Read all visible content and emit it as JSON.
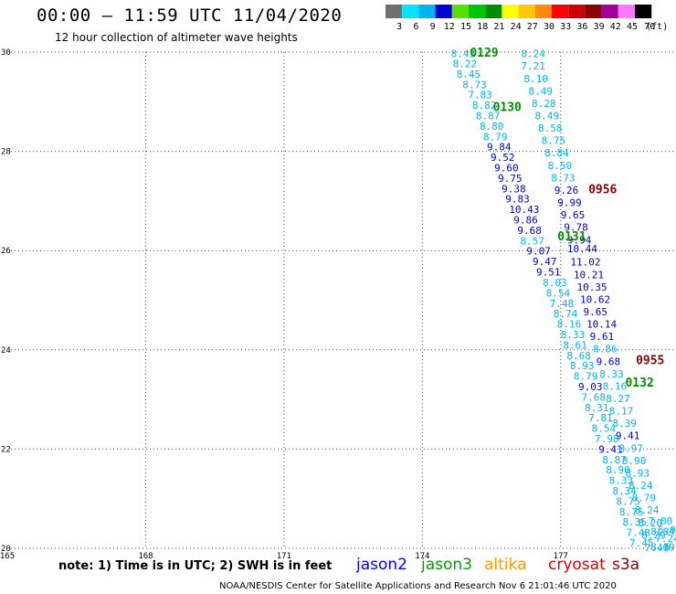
{
  "header": {
    "title": "00:00 – 11:59 UTC 11/04/2020",
    "subtitle": "12 hour collection of altimeter wave heights"
  },
  "colorbar": {
    "colors": [
      "#707070",
      "#00e5ff",
      "#00b4f0",
      "#0000d2",
      "#58e000",
      "#00c800",
      "#008e00",
      "#ffff00",
      "#ffc800",
      "#ff8c00",
      "#ff0000",
      "#cc0000",
      "#8b0000",
      "#a000a0",
      "#ff78ff",
      "#000000"
    ],
    "labels": [
      "3",
      "6",
      "9",
      "12",
      "15",
      "18",
      "21",
      "24",
      "27",
      "30",
      "33",
      "36",
      "39",
      "42",
      "45",
      "70",
      "(ft)"
    ]
  },
  "footer": {
    "note": "note: 1) Time is in UTC; 2) SWH is in feet",
    "credit": "NOAA/NESDIS Center for Satellite Applications and Research    Nov  6 21:01:46 UTC 2020",
    "satellites": [
      {
        "name": "jason2",
        "color": "#0000ff"
      },
      {
        "name": "jason3",
        "color": "#00a000"
      },
      {
        "name": "altika",
        "color": "#ff9a00"
      },
      {
        "name": "cryosat",
        "color": "#dd0000"
      },
      {
        "name": "s3a",
        "color": "#8b0000"
      }
    ]
  },
  "chart_data": {
    "type": "scatter",
    "xlim": [
      165,
      179.5
    ],
    "ylim": [
      20,
      30
    ],
    "x_ticks": [
      "165",
      "168",
      "171",
      "174",
      "177"
    ],
    "x_tick_values": [
      165,
      168,
      171,
      174,
      177
    ],
    "y_ticks": [
      "20",
      "22",
      "24",
      "26",
      "28",
      "30"
    ],
    "y_tick_values": [
      20,
      22,
      24,
      26,
      28,
      30
    ],
    "grid": "dotted",
    "time_labels": [
      {
        "text": "0129",
        "lon": 175.03,
        "lat": 30.0,
        "color": "#008e00"
      },
      {
        "text": "0130",
        "lon": 175.53,
        "lat": 28.9,
        "color": "#008e00"
      },
      {
        "text": "0131",
        "lon": 176.93,
        "lat": 26.3,
        "color": "#008e00"
      },
      {
        "text": "0132",
        "lon": 178.4,
        "lat": 23.35,
        "color": "#008e00"
      },
      {
        "text": "0956",
        "lon": 177.6,
        "lat": 27.25,
        "color": "#8b0000"
      },
      {
        "text": "0955",
        "lon": 178.63,
        "lat": 23.8,
        "color": "#8b0000"
      }
    ],
    "series": [
      {
        "name": "jason3",
        "points": [
          {
            "lon": 174.62,
            "lat": 29.97,
            "v": "8.43",
            "c": "#00b4f0"
          },
          {
            "lon": 174.66,
            "lat": 29.77,
            "v": "8.22",
            "c": "#00b4f0"
          },
          {
            "lon": 174.74,
            "lat": 29.56,
            "v": "8.45",
            "c": "#00b4f0"
          },
          {
            "lon": 174.87,
            "lat": 29.35,
            "v": "8.73",
            "c": "#00b4f0"
          },
          {
            "lon": 174.99,
            "lat": 29.14,
            "v": "7.83",
            "c": "#00b4f0"
          },
          {
            "lon": 175.08,
            "lat": 28.93,
            "v": "8.82",
            "c": "#00b4f0"
          },
          {
            "lon": 175.16,
            "lat": 28.72,
            "v": "8.87",
            "c": "#00b4f0"
          },
          {
            "lon": 175.24,
            "lat": 28.51,
            "v": "8.80",
            "c": "#00b4f0"
          },
          {
            "lon": 175.32,
            "lat": 28.3,
            "v": "8.79",
            "c": "#00b4f0"
          },
          {
            "lon": 175.4,
            "lat": 28.09,
            "v": "9.84",
            "c": "#0000d2"
          },
          {
            "lon": 175.48,
            "lat": 27.88,
            "v": "9.52",
            "c": "#0000d2"
          },
          {
            "lon": 175.56,
            "lat": 27.67,
            "v": "9.60",
            "c": "#0000d2"
          },
          {
            "lon": 175.64,
            "lat": 27.46,
            "v": "9.75",
            "c": "#0000d2"
          },
          {
            "lon": 175.72,
            "lat": 27.25,
            "v": "9.38",
            "c": "#0000d2"
          },
          {
            "lon": 175.8,
            "lat": 27.04,
            "v": "9.83",
            "c": "#0000d2"
          },
          {
            "lon": 175.88,
            "lat": 26.83,
            "v": "10.43",
            "c": "#0000d2"
          },
          {
            "lon": 175.98,
            "lat": 26.62,
            "v": "9.86",
            "c": "#0000d2"
          },
          {
            "lon": 176.06,
            "lat": 26.41,
            "v": "9.68",
            "c": "#0000d2"
          },
          {
            "lon": 176.12,
            "lat": 26.2,
            "v": "8.57",
            "c": "#00b4f0"
          },
          {
            "lon": 176.26,
            "lat": 25.99,
            "v": "9.07",
            "c": "#0000d2"
          },
          {
            "lon": 176.39,
            "lat": 25.78,
            "v": "9.47",
            "c": "#0000d2"
          },
          {
            "lon": 176.47,
            "lat": 25.57,
            "v": "9.51",
            "c": "#0000d2"
          },
          {
            "lon": 176.61,
            "lat": 25.36,
            "v": "8.03",
            "c": "#00b4f0"
          },
          {
            "lon": 176.68,
            "lat": 25.15,
            "v": "8.54",
            "c": "#00b4f0"
          },
          {
            "lon": 176.76,
            "lat": 24.94,
            "v": "7.48",
            "c": "#00b4f0"
          },
          {
            "lon": 176.84,
            "lat": 24.73,
            "v": "8.74",
            "c": "#00b4f0"
          },
          {
            "lon": 176.92,
            "lat": 24.52,
            "v": "8.16",
            "c": "#00b4f0"
          },
          {
            "lon": 177.0,
            "lat": 24.31,
            "v": "8.33",
            "c": "#00b4f0"
          },
          {
            "lon": 177.05,
            "lat": 24.1,
            "v": "8.61",
            "c": "#00b4f0"
          },
          {
            "lon": 177.13,
            "lat": 23.89,
            "v": "8.68",
            "c": "#00b4f0"
          },
          {
            "lon": 177.2,
            "lat": 23.68,
            "v": "8.93",
            "c": "#00b4f0"
          },
          {
            "lon": 177.28,
            "lat": 23.47,
            "v": "8.79",
            "c": "#00b4f0"
          },
          {
            "lon": 177.38,
            "lat": 23.26,
            "v": "9.03",
            "c": "#0000d2"
          },
          {
            "lon": 177.45,
            "lat": 23.05,
            "v": "7.68",
            "c": "#00b4f0"
          },
          {
            "lon": 177.52,
            "lat": 22.84,
            "v": "8.31",
            "c": "#00b4f0"
          },
          {
            "lon": 177.6,
            "lat": 22.63,
            "v": "7.81",
            "c": "#00b4f0"
          },
          {
            "lon": 177.67,
            "lat": 22.42,
            "v": "8.54",
            "c": "#00b4f0"
          },
          {
            "lon": 177.74,
            "lat": 22.21,
            "v": "7.98",
            "c": "#00b4f0"
          },
          {
            "lon": 177.82,
            "lat": 22.0,
            "v": "9.41",
            "c": "#0000d2"
          },
          {
            "lon": 177.9,
            "lat": 21.79,
            "v": "8.87",
            "c": "#00b4f0"
          },
          {
            "lon": 177.98,
            "lat": 21.58,
            "v": "8.90",
            "c": "#00b4f0"
          },
          {
            "lon": 178.05,
            "lat": 21.37,
            "v": "8.33",
            "c": "#00b4f0"
          },
          {
            "lon": 178.12,
            "lat": 21.16,
            "v": "8.34",
            "c": "#00b4f0"
          },
          {
            "lon": 178.2,
            "lat": 20.95,
            "v": "8.75",
            "c": "#00b4f0"
          },
          {
            "lon": 178.27,
            "lat": 20.74,
            "v": "8.75",
            "c": "#00b4f0"
          },
          {
            "lon": 178.34,
            "lat": 20.53,
            "v": "8.35",
            "c": "#00b4f0"
          },
          {
            "lon": 178.42,
            "lat": 20.32,
            "v": "7.48",
            "c": "#00b4f0"
          },
          {
            "lon": 178.49,
            "lat": 20.11,
            "v": "7.45",
            "c": "#00b4f0"
          }
        ]
      },
      {
        "name": "s3a",
        "points": [
          {
            "lon": 176.14,
            "lat": 29.97,
            "v": "8.24",
            "c": "#00b4f0"
          },
          {
            "lon": 176.14,
            "lat": 29.72,
            "v": "7.21",
            "c": "#00b4f0"
          },
          {
            "lon": 176.2,
            "lat": 29.47,
            "v": "8.10",
            "c": "#00b4f0"
          },
          {
            "lon": 176.3,
            "lat": 29.22,
            "v": "8.49",
            "c": "#00b4f0"
          },
          {
            "lon": 176.37,
            "lat": 28.97,
            "v": "8.28",
            "c": "#00b4f0"
          },
          {
            "lon": 176.44,
            "lat": 28.72,
            "v": "8.49",
            "c": "#00b4f0"
          },
          {
            "lon": 176.51,
            "lat": 28.47,
            "v": "8.58",
            "c": "#00b4f0"
          },
          {
            "lon": 176.58,
            "lat": 28.22,
            "v": "8.75",
            "c": "#00b4f0"
          },
          {
            "lon": 176.65,
            "lat": 27.97,
            "v": "8.84",
            "c": "#00b4f0"
          },
          {
            "lon": 176.72,
            "lat": 27.72,
            "v": "8.50",
            "c": "#00b4f0"
          },
          {
            "lon": 176.79,
            "lat": 27.47,
            "v": "8.73",
            "c": "#00b4f0"
          },
          {
            "lon": 176.86,
            "lat": 27.22,
            "v": "9.26",
            "c": "#0000d2"
          },
          {
            "lon": 176.93,
            "lat": 26.97,
            "v": "9.99",
            "c": "#0000d2"
          },
          {
            "lon": 177.0,
            "lat": 26.72,
            "v": "9.65",
            "c": "#0000d2"
          },
          {
            "lon": 177.07,
            "lat": 26.47,
            "v": "9.78",
            "c": "#0000d2"
          },
          {
            "lon": 177.14,
            "lat": 26.22,
            "v": "9.94",
            "c": "#0000d2"
          },
          {
            "lon": 177.14,
            "lat": 26.04,
            "v": "10.44",
            "c": "#0000d2"
          },
          {
            "lon": 177.21,
            "lat": 25.77,
            "v": "11.02",
            "c": "#0000d2"
          },
          {
            "lon": 177.28,
            "lat": 25.52,
            "v": "10.21",
            "c": "#0000d2"
          },
          {
            "lon": 177.35,
            "lat": 25.27,
            "v": "10.35",
            "c": "#0000d2"
          },
          {
            "lon": 177.42,
            "lat": 25.02,
            "v": "10.62",
            "c": "#0000d2"
          },
          {
            "lon": 177.49,
            "lat": 24.77,
            "v": "9.65",
            "c": "#0000d2"
          },
          {
            "lon": 177.56,
            "lat": 24.52,
            "v": "10.14",
            "c": "#0000d2"
          },
          {
            "lon": 177.63,
            "lat": 24.27,
            "v": "9.61",
            "c": "#0000d2"
          },
          {
            "lon": 177.7,
            "lat": 24.02,
            "v": "8.86",
            "c": "#00b4f0"
          },
          {
            "lon": 177.77,
            "lat": 23.77,
            "v": "9.68",
            "c": "#0000d2"
          },
          {
            "lon": 177.84,
            "lat": 23.52,
            "v": "8.33",
            "c": "#00b4f0"
          },
          {
            "lon": 177.91,
            "lat": 23.27,
            "v": "8.16",
            "c": "#00b4f0"
          },
          {
            "lon": 177.98,
            "lat": 23.02,
            "v": "8.27",
            "c": "#00b4f0"
          },
          {
            "lon": 178.05,
            "lat": 22.77,
            "v": "8.17",
            "c": "#00b4f0"
          },
          {
            "lon": 178.12,
            "lat": 22.52,
            "v": "8.39",
            "c": "#00b4f0"
          },
          {
            "lon": 178.19,
            "lat": 22.27,
            "v": "9.41",
            "c": "#0000d2"
          },
          {
            "lon": 178.26,
            "lat": 22.02,
            "v": "8.97",
            "c": "#00b4f0"
          },
          {
            "lon": 178.33,
            "lat": 21.77,
            "v": "8.90",
            "c": "#00b4f0"
          },
          {
            "lon": 178.4,
            "lat": 21.52,
            "v": "8.93",
            "c": "#00b4f0"
          },
          {
            "lon": 178.47,
            "lat": 21.27,
            "v": "8.24",
            "c": "#00b4f0"
          },
          {
            "lon": 178.54,
            "lat": 21.02,
            "v": "8.79",
            "c": "#00b4f0"
          },
          {
            "lon": 178.61,
            "lat": 20.77,
            "v": "8.24",
            "c": "#00b4f0"
          },
          {
            "lon": 178.68,
            "lat": 20.52,
            "v": "8.20",
            "c": "#00b4f0"
          },
          {
            "lon": 178.75,
            "lat": 20.27,
            "v": "8.29",
            "c": "#00b4f0"
          },
          {
            "lon": 178.82,
            "lat": 20.02,
            "v": "7.40",
            "c": "#00b4f0"
          }
        ]
      },
      {
        "name": "jason2-tail",
        "points": [
          {
            "lon": 178.9,
            "lat": 20.55,
            "v": "7.00",
            "c": "#00b4f0"
          },
          {
            "lon": 178.95,
            "lat": 20.34,
            "v": "8.84",
            "c": "#00b4f0"
          },
          {
            "lon": 179.05,
            "lat": 20.2,
            "v": "7.24",
            "c": "#00b4f0"
          },
          {
            "lon": 179.1,
            "lat": 20.38,
            "v": "6.03",
            "c": "#00b4f0"
          },
          {
            "lon": 178.95,
            "lat": 20.03,
            "v": "8.19",
            "c": "#00b4f0"
          },
          {
            "lon": 179.25,
            "lat": 20.03,
            "v": "6",
            "c": "#00b4f0"
          }
        ]
      }
    ]
  }
}
